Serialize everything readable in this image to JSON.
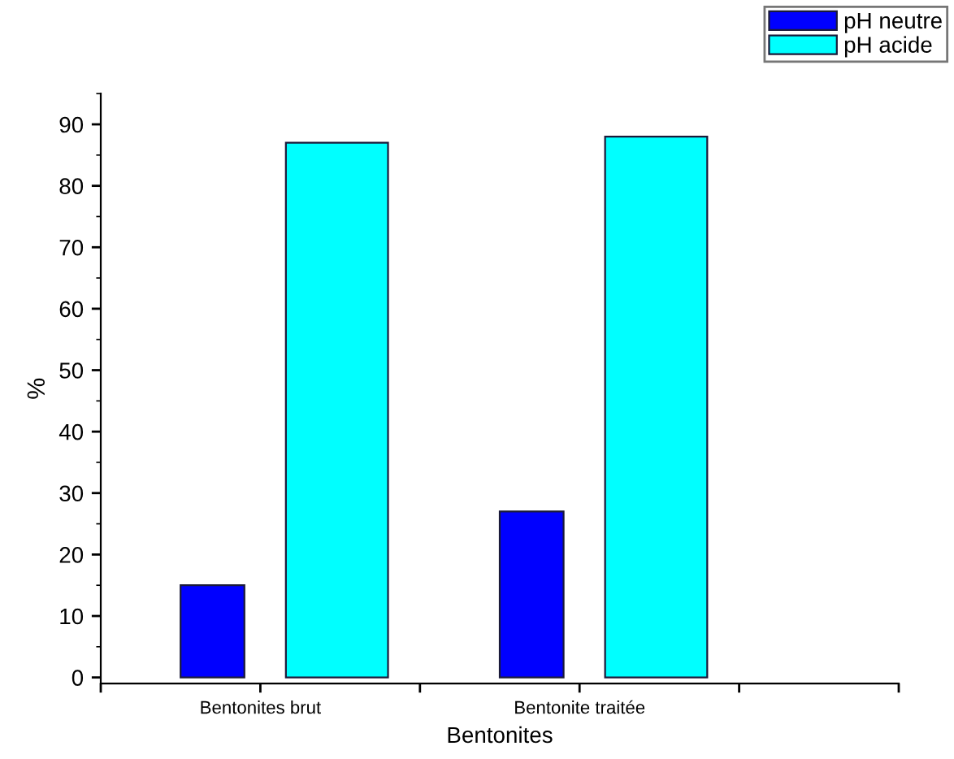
{
  "chart_data": {
    "type": "bar",
    "xlabel": "Bentonites",
    "ylabel": "%",
    "categories": [
      "Bentonites brut",
      "Bentonite traitée",
      null
    ],
    "series": [
      {
        "name": "pH neutre",
        "color": "#0000ff",
        "values": [
          15,
          27,
          null
        ]
      },
      {
        "name": "pH acide",
        "color": "#00ffff",
        "values": [
          87,
          88,
          null
        ]
      }
    ],
    "ylim": [
      -1,
      95
    ],
    "yticks": [
      0,
      10,
      20,
      30,
      40,
      50,
      60,
      70,
      80,
      90
    ],
    "grid": false,
    "legend": "top right"
  }
}
